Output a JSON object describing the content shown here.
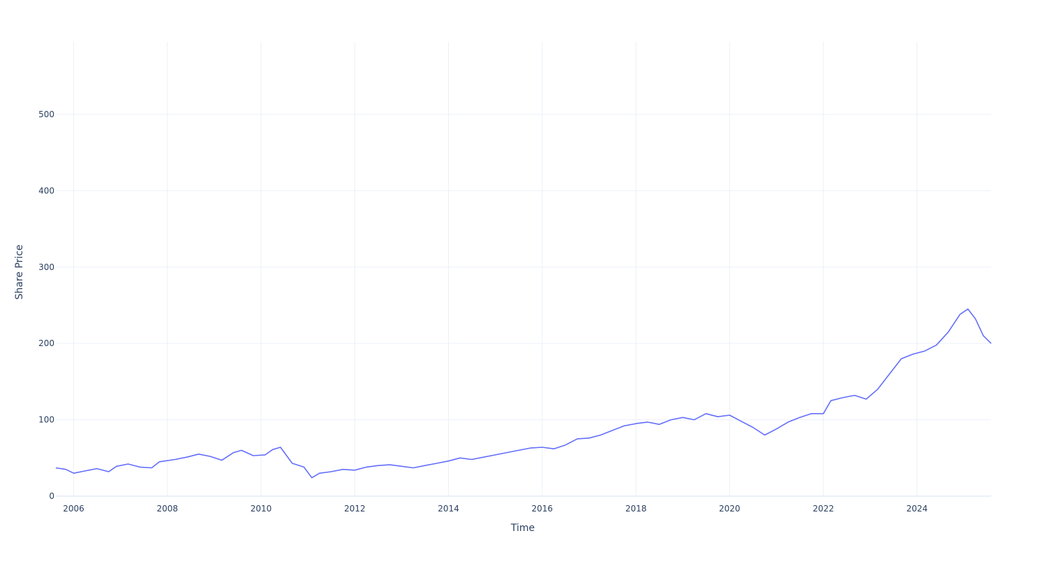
{
  "chart_data": {
    "type": "line",
    "title": "",
    "xlabel": "Time",
    "ylabel": "Share Price",
    "xlim": [
      "2005-08-15",
      "2025-08-01"
    ],
    "ylim": [
      0,
      595
    ],
    "x_ticks": [
      "2006",
      "2008",
      "2010",
      "2012",
      "2014",
      "2016",
      "2018",
      "2020",
      "2022",
      "2024"
    ],
    "y_ticks": [
      0,
      100,
      200,
      300,
      400,
      500
    ],
    "grid": true,
    "legend": "none",
    "series": [
      {
        "color": "#636efa",
        "points": [
          [
            "2005-08-15",
            37
          ],
          [
            "2005-11-01",
            35
          ],
          [
            "2006-01-01",
            30
          ],
          [
            "2006-04-01",
            33
          ],
          [
            "2006-07-01",
            36
          ],
          [
            "2006-10-01",
            32
          ],
          [
            "2006-12-01",
            39
          ],
          [
            "2007-03-01",
            42
          ],
          [
            "2007-06-01",
            38
          ],
          [
            "2007-09-01",
            37
          ],
          [
            "2007-11-01",
            45
          ],
          [
            "2008-03-01",
            48
          ],
          [
            "2008-06-01",
            51
          ],
          [
            "2008-09-01",
            55
          ],
          [
            "2008-12-01",
            52
          ],
          [
            "2009-03-01",
            47
          ],
          [
            "2009-06-01",
            57
          ],
          [
            "2009-08-01",
            60
          ],
          [
            "2009-11-01",
            53
          ],
          [
            "2010-02-01",
            54
          ],
          [
            "2010-04-01",
            61
          ],
          [
            "2010-06-01",
            64
          ],
          [
            "2010-09-01",
            43
          ],
          [
            "2010-12-01",
            38
          ],
          [
            "2011-02-01",
            24
          ],
          [
            "2011-04-01",
            30
          ],
          [
            "2011-07-01",
            32
          ],
          [
            "2011-10-01",
            35
          ],
          [
            "2012-01-01",
            34
          ],
          [
            "2012-04-01",
            38
          ],
          [
            "2012-07-01",
            40
          ],
          [
            "2012-10-01",
            41
          ],
          [
            "2013-01-01",
            39
          ],
          [
            "2013-04-01",
            37
          ],
          [
            "2013-07-01",
            40
          ],
          [
            "2013-10-01",
            43
          ],
          [
            "2014-01-01",
            46
          ],
          [
            "2014-04-01",
            50
          ],
          [
            "2014-07-01",
            48
          ],
          [
            "2014-10-01",
            51
          ],
          [
            "2015-01-01",
            54
          ],
          [
            "2015-04-01",
            57
          ],
          [
            "2015-07-01",
            60
          ],
          [
            "2015-10-01",
            63
          ],
          [
            "2016-01-01",
            64
          ],
          [
            "2016-04-01",
            62
          ],
          [
            "2016-07-01",
            67
          ],
          [
            "2016-10-01",
            75
          ],
          [
            "2017-01-01",
            76
          ],
          [
            "2017-04-01",
            80
          ],
          [
            "2017-07-01",
            86
          ],
          [
            "2017-10-01",
            92
          ],
          [
            "2018-01-01",
            95
          ],
          [
            "2018-04-01",
            97
          ],
          [
            "2018-07-01",
            94
          ],
          [
            "2018-10-01",
            100
          ],
          [
            "2019-01-01",
            103
          ],
          [
            "2019-04-01",
            100
          ],
          [
            "2019-07-01",
            108
          ],
          [
            "2019-10-01",
            104
          ],
          [
            "2020-01-01",
            106
          ],
          [
            "2020-04-01",
            98
          ],
          [
            "2020-07-01",
            90
          ],
          [
            "2020-10-01",
            80
          ],
          [
            "2021-01-01",
            88
          ],
          [
            "2021-04-01",
            97
          ],
          [
            "2021-07-01",
            103
          ],
          [
            "2021-10-01",
            108
          ],
          [
            "2022-01-01",
            108
          ],
          [
            "2022-03-01",
            125
          ],
          [
            "2022-06-01",
            129
          ],
          [
            "2022-09-01",
            132
          ],
          [
            "2022-12-01",
            127
          ],
          [
            "2023-03-01",
            140
          ],
          [
            "2023-06-01",
            160
          ],
          [
            "2023-09-01",
            180
          ],
          [
            "2023-12-01",
            186
          ],
          [
            "2024-03-01",
            190
          ],
          [
            "2024-06-01",
            198
          ],
          [
            "2024-09-01",
            215
          ],
          [
            "2024-12-01",
            238
          ],
          [
            "2025-02-01",
            245
          ],
          [
            "2025-04-01",
            232
          ],
          [
            "2025-06-01",
            210
          ],
          [
            "2025-08-01",
            200
          ]
        ],
        "note_unused": false
      }
    ]
  }
}
